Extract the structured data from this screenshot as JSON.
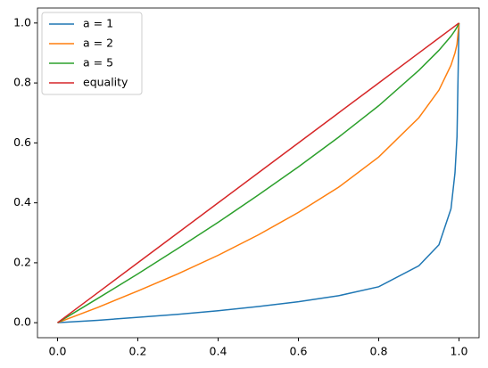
{
  "chart_data": {
    "type": "line",
    "x": [
      0,
      0.1,
      0.2,
      0.3,
      0.4,
      0.5,
      0.6,
      0.7,
      0.8,
      0.9,
      0.95,
      0.98,
      0.99,
      0.995,
      1
    ],
    "series": [
      {
        "name": "a = 1",
        "color": "#1f77b4",
        "values": [
          0,
          0.008,
          0.018,
          0.028,
          0.04,
          0.054,
          0.07,
          0.09,
          0.12,
          0.19,
          0.26,
          0.38,
          0.5,
          0.62,
          1
        ]
      },
      {
        "name": "a = 2",
        "color": "#ff7f0e",
        "values": [
          0,
          0.051,
          0.106,
          0.163,
          0.225,
          0.293,
          0.368,
          0.452,
          0.553,
          0.684,
          0.776,
          0.859,
          0.9,
          0.929,
          1
        ]
      },
      {
        "name": "a = 5",
        "color": "#2ca02c",
        "values": [
          0,
          0.081,
          0.163,
          0.248,
          0.335,
          0.426,
          0.52,
          0.619,
          0.724,
          0.842,
          0.909,
          0.956,
          0.975,
          0.986,
          1
        ]
      },
      {
        "name": "equality",
        "color": "#d62728",
        "values": [
          0,
          0.1,
          0.2,
          0.3,
          0.4,
          0.5,
          0.6,
          0.7,
          0.8,
          0.9,
          0.95,
          0.98,
          0.99,
          0.995,
          1
        ]
      }
    ],
    "xlim": [
      -0.05,
      1.05
    ],
    "ylim": [
      -0.05,
      1.05
    ],
    "xticks": [
      {
        "value": 0,
        "label": "0.0"
      },
      {
        "value": 0.2,
        "label": "0.2"
      },
      {
        "value": 0.4,
        "label": "0.4"
      },
      {
        "value": 0.6,
        "label": "0.6"
      },
      {
        "value": 0.8,
        "label": "0.8"
      },
      {
        "value": 1,
        "label": "1.0"
      }
    ],
    "yticks": [
      {
        "value": 0,
        "label": "0.0"
      },
      {
        "value": 0.2,
        "label": "0.2"
      },
      {
        "value": 0.4,
        "label": "0.4"
      },
      {
        "value": 0.6,
        "label": "0.6"
      },
      {
        "value": 0.8,
        "label": "0.8"
      },
      {
        "value": 1,
        "label": "1.0"
      }
    ],
    "grid": false,
    "legend": "upper left"
  }
}
